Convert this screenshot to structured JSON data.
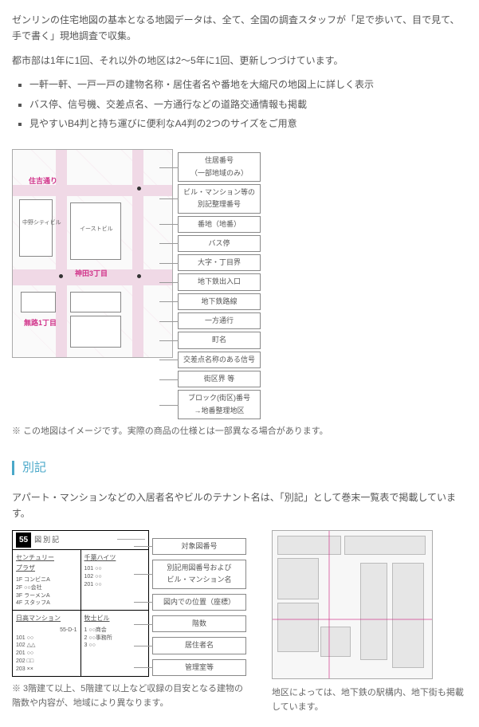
{
  "intro": {
    "line1": "ゼンリンの住宅地図の基本となる地図データは、全て、全国の調査スタッフが「足で歩いて、目で見て、手で書く」現地調査で収集。",
    "line2": "都市部は1年に1回、それ以外の地区は2〜5年に1回、更新しつづけています。"
  },
  "bullets": [
    "一軒一軒、一戸一戸の建物名称・居住者名や番地を大縮尺の地図上に詳しく表示",
    "バス停、信号機、交差点名、一方通行などの道路交通情報も掲載",
    "見やすいB4判と持ち運びに便利なA4判の2つのサイズをご用意"
  ],
  "mapLabels": {
    "roadName": "住吉通り",
    "area1": "神田3丁目",
    "area2": "無路1丁目",
    "bldg1": "中野シティビル",
    "bldg2": "イーストビル"
  },
  "legendItems": [
    "住居番号\n（一部地域のみ）",
    "ビル・マンション等の\n別記整理番号",
    "番地（地番）",
    "バス停",
    "大字・丁目界",
    "地下鉄出入口",
    "地下鉄路線",
    "一方通行",
    "町名",
    "交差点名称のある信号",
    "街区界 等",
    "ブロック(街区)番号\n→地番整理地区"
  ],
  "mapCaption": "※ この地図はイメージです。実際の商品の仕様とは一部異なる場合があります。",
  "sectionTitle": "別記",
  "betsukiIntro": "アパート・マンションなどの入居者名やビルのテナント名は、「別記」として巻末一覧表で掲載しています。",
  "betsuki": {
    "pageNum": "55",
    "pageLabel": "図別記",
    "blockA": {
      "title": "センチュリー\nプラザ",
      "rows": [
        "1F コンビニA",
        "2F ○○会社",
        "3F ラーメンA",
        "4F スタッフA"
      ]
    },
    "blockB": {
      "title": "日高マンション",
      "sub": "55-D-1",
      "rows": [
        "101 ○○",
        "102 △△",
        "201 ○○",
        "202 □□",
        "203 ××"
      ]
    },
    "blockC": {
      "title": "千葉ハイツ",
      "rows": [
        "101 ○○",
        "102 ○○",
        "201 ○○"
      ]
    },
    "blockD": {
      "title": "牧士ビル",
      "rows": [
        "1 ○○商会",
        "2 ○○事務所",
        "3 ○○"
      ]
    }
  },
  "betsukiLegends": [
    "対象図番号",
    "別記用図番号および\nビル・マンション名",
    "図内での位置（座標）",
    "階数",
    "居住者名",
    "管理室等"
  ],
  "betsukiCaption": "※ 3階建て以上、5階建て以上など収録の目安となる建物の階数や内容が、地域により異なります。",
  "rightCaption": "地区によっては、地下鉄の駅構内、地下街も掲載しています。",
  "colors": {
    "accent": "#4aa8c9",
    "pink": "#d1338a",
    "text": "#555555"
  }
}
